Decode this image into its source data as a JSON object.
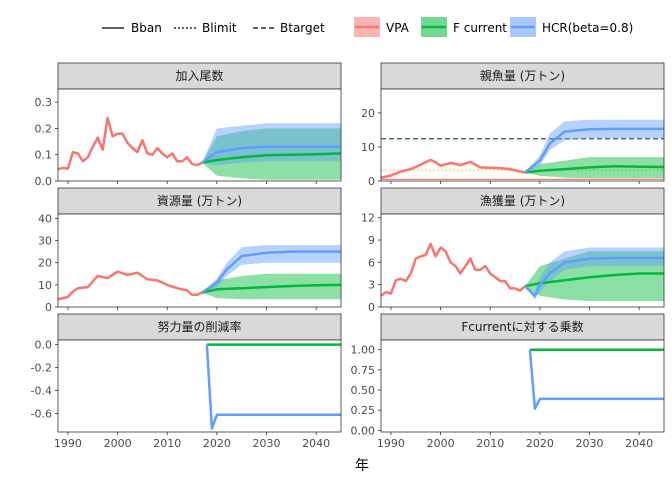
{
  "legend": {
    "linetypes": [
      {
        "label": "Bban",
        "dash": "solid"
      },
      {
        "label": "Blimit",
        "dash": "dotted"
      },
      {
        "label": "Btarget",
        "dash": "dashed"
      }
    ],
    "fills": [
      {
        "label": "VPA",
        "color": "#f8766d"
      },
      {
        "label": "F current",
        "color": "#00ba38"
      },
      {
        "label": "HCR(beta=0.8)",
        "color": "#619cff"
      }
    ]
  },
  "xlabel": "年",
  "colors": {
    "vpa": "#f8766d",
    "fcur": "#00ba38",
    "hcr": "#619cff",
    "panel_strip": "#d9d9d9",
    "btarget": "#1b5e3b",
    "blimit": "#ffd24d",
    "bban": "#f8766d"
  },
  "chart_data": [
    {
      "id": "recruit",
      "type": "line",
      "title": "加入尾数",
      "xlim": [
        1988,
        2045
      ],
      "ylim": [
        0,
        0.35
      ],
      "xticks": [
        1990,
        2000,
        2010,
        2020,
        2030,
        2040
      ],
      "yticks": [
        0.0,
        0.1,
        0.2,
        0.3
      ],
      "ytick_labels": [
        "0.0",
        "0.1",
        "0.2",
        "0.3"
      ],
      "vpa": {
        "x": [
          1988,
          1989,
          1990,
          1991,
          1992,
          1993,
          1994,
          1995,
          1996,
          1997,
          1998,
          1999,
          2000,
          2001,
          2002,
          2003,
          2004,
          2005,
          2006,
          2007,
          2008,
          2009,
          2010,
          2011,
          2012,
          2013,
          2014,
          2015,
          2016,
          2017
        ],
        "y": [
          0.045,
          0.05,
          0.047,
          0.11,
          0.105,
          0.075,
          0.09,
          0.13,
          0.165,
          0.12,
          0.24,
          0.17,
          0.18,
          0.18,
          0.145,
          0.125,
          0.11,
          0.155,
          0.105,
          0.1,
          0.125,
          0.105,
          0.09,
          0.105,
          0.075,
          0.075,
          0.09,
          0.065,
          0.06,
          0.07
        ]
      },
      "fcur": {
        "x": [
          2017,
          2020,
          2025,
          2030,
          2035,
          2040,
          2045
        ],
        "median": [
          0.07,
          0.08,
          0.09,
          0.098,
          0.1,
          0.102,
          0.105
        ],
        "lo": [
          0.07,
          0.02,
          0.01,
          0.005,
          0.005,
          0.005,
          0.005
        ],
        "hi": [
          0.07,
          0.17,
          0.19,
          0.2,
          0.2,
          0.2,
          0.2
        ]
      },
      "hcr": {
        "x": [
          2017,
          2020,
          2025,
          2030,
          2035,
          2040,
          2045
        ],
        "median": [
          0.07,
          0.11,
          0.125,
          0.13,
          0.13,
          0.13,
          0.13
        ],
        "lo": [
          0.07,
          0.06,
          0.07,
          0.075,
          0.075,
          0.075,
          0.075
        ],
        "hi": [
          0.07,
          0.2,
          0.21,
          0.22,
          0.22,
          0.22,
          0.22
        ]
      }
    },
    {
      "id": "ssb",
      "type": "line",
      "title": "親魚量 (万トン)",
      "xlim": [
        1988,
        2045
      ],
      "ylim": [
        0,
        27
      ],
      "xticks": [
        1990,
        2000,
        2010,
        2020,
        2030,
        2040
      ],
      "yticks": [
        0,
        10,
        20
      ],
      "ytick_labels": [
        "0",
        "10",
        "20"
      ],
      "refs": [
        {
          "name": "Btarget",
          "y": 12.4
        },
        {
          "name": "Blimit",
          "y": 3.2
        },
        {
          "name": "Bban",
          "y": 0.5
        }
      ],
      "vpa": {
        "x": [
          1988,
          1990,
          1992,
          1994,
          1996,
          1998,
          1999,
          2000,
          2002,
          2004,
          2006,
          2008,
          2010,
          2012,
          2014,
          2016,
          2017
        ],
        "y": [
          1.0,
          1.6,
          2.8,
          3.5,
          4.8,
          6.2,
          5.5,
          4.5,
          5.3,
          4.7,
          5.6,
          4.0,
          3.9,
          3.8,
          3.5,
          2.8,
          2.5
        ]
      },
      "fcur": {
        "x": [
          2017,
          2020,
          2025,
          2030,
          2035,
          2040,
          2045
        ],
        "median": [
          2.5,
          3.0,
          3.5,
          4.0,
          4.3,
          4.2,
          4.1
        ],
        "lo": [
          2.5,
          1.5,
          1.0,
          0.8,
          0.8,
          0.8,
          0.8
        ],
        "hi": [
          2.5,
          5.0,
          6.0,
          7.0,
          7.0,
          7.0,
          7.0
        ]
      },
      "hcr": {
        "x": [
          2017,
          2020,
          2022,
          2025,
          2030,
          2035,
          2040,
          2045
        ],
        "median": [
          2.5,
          6.0,
          11.0,
          14.5,
          15.2,
          15.3,
          15.3,
          15.3
        ],
        "lo": [
          2.5,
          4.5,
          9.0,
          12.0,
          12.5,
          12.5,
          12.5,
          12.5
        ],
        "hi": [
          2.5,
          7.5,
          14.0,
          17.5,
          18.0,
          18.0,
          18.0,
          18.0
        ]
      }
    },
    {
      "id": "biomass",
      "type": "line",
      "title": "資源量 (万トン)",
      "xlim": [
        1988,
        2045
      ],
      "ylim": [
        0,
        42
      ],
      "xticks": [
        1990,
        2000,
        2010,
        2020,
        2030,
        2040
      ],
      "yticks": [
        0,
        10,
        20,
        30,
        40
      ],
      "ytick_labels": [
        "0",
        "10",
        "20",
        "30",
        "40"
      ],
      "vpa": {
        "x": [
          1988,
          1990,
          1991,
          1992,
          1994,
          1996,
          1998,
          2000,
          2002,
          2004,
          2006,
          2008,
          2010,
          2012,
          2014,
          2015,
          2016,
          2017
        ],
        "y": [
          3.5,
          4.5,
          7.0,
          8.5,
          9.0,
          14.0,
          13.0,
          16.0,
          14.5,
          15.5,
          12.5,
          12.0,
          10.0,
          8.5,
          7.5,
          5.5,
          5.5,
          6.5
        ]
      },
      "fcur": {
        "x": [
          2017,
          2020,
          2025,
          2030,
          2035,
          2040,
          2045
        ],
        "median": [
          6.5,
          8.0,
          8.5,
          9.0,
          9.5,
          9.8,
          10.0
        ],
        "lo": [
          6.5,
          4.0,
          3.5,
          3.5,
          3.5,
          3.5,
          3.5
        ],
        "hi": [
          6.5,
          12.0,
          14.0,
          15.0,
          15.0,
          15.0,
          15.0
        ]
      },
      "hcr": {
        "x": [
          2017,
          2020,
          2022,
          2025,
          2030,
          2035,
          2040,
          2045
        ],
        "median": [
          6.5,
          11.0,
          17.0,
          23.0,
          24.5,
          25.0,
          25.0,
          25.0
        ],
        "lo": [
          6.5,
          9.0,
          14.0,
          19.0,
          20.0,
          20.0,
          20.0,
          20.0
        ],
        "hi": [
          6.5,
          13.0,
          20.0,
          27.0,
          28.0,
          28.0,
          28.0,
          28.0
        ]
      }
    },
    {
      "id": "catch",
      "type": "line",
      "title": "漁獲量 (万トン)",
      "xlim": [
        1988,
        2045
      ],
      "ylim": [
        0,
        12.5
      ],
      "xticks": [
        1990,
        2000,
        2010,
        2020,
        2030,
        2040
      ],
      "yticks": [
        0,
        3,
        6,
        9,
        12
      ],
      "ytick_labels": [
        "0",
        "3",
        "6",
        "9",
        "12"
      ],
      "vpa": {
        "x": [
          1988,
          1989,
          1990,
          1991,
          1992,
          1993,
          1994,
          1995,
          1996,
          1997,
          1998,
          1999,
          2000,
          2001,
          2002,
          2003,
          2004,
          2005,
          2006,
          2007,
          2008,
          2009,
          2010,
          2011,
          2012,
          2013,
          2014,
          2015,
          2016,
          2017
        ],
        "y": [
          1.5,
          2.0,
          1.8,
          3.6,
          3.8,
          3.5,
          4.5,
          6.5,
          6.8,
          7.0,
          8.5,
          6.8,
          8.0,
          7.5,
          6.0,
          5.5,
          4.5,
          5.5,
          6.5,
          5.0,
          5.0,
          5.5,
          4.5,
          4.0,
          3.5,
          3.5,
          2.5,
          2.5,
          2.2,
          2.8
        ]
      },
      "fcur": {
        "x": [
          2017,
          2020,
          2025,
          2030,
          2035,
          2040,
          2045
        ],
        "median": [
          2.8,
          3.2,
          3.6,
          4.0,
          4.3,
          4.5,
          4.5
        ],
        "lo": [
          2.8,
          1.5,
          1.0,
          0.8,
          0.8,
          0.8,
          0.8
        ],
        "hi": [
          2.8,
          5.5,
          6.5,
          7.5,
          7.5,
          7.5,
          7.5
        ]
      },
      "hcr": {
        "x": [
          2017,
          2019,
          2020,
          2022,
          2025,
          2030,
          2035,
          2040,
          2045
        ],
        "median": [
          2.8,
          1.5,
          3.0,
          4.5,
          6.0,
          6.5,
          6.6,
          6.6,
          6.6
        ],
        "lo": [
          2.8,
          1.0,
          2.0,
          3.5,
          5.0,
          5.5,
          5.5,
          5.5,
          5.5
        ],
        "hi": [
          2.8,
          2.0,
          4.0,
          6.0,
          7.5,
          8.0,
          8.0,
          8.0,
          8.0
        ]
      }
    },
    {
      "id": "effort",
      "type": "line",
      "title": "努力量の削減率",
      "xlim": [
        1988,
        2045
      ],
      "ylim": [
        -0.76,
        0.04
      ],
      "xticks": [
        1990,
        2000,
        2010,
        2020,
        2030,
        2040
      ],
      "xtick_labels": [
        "1990",
        "2000",
        "2010",
        "2020",
        "2030",
        "2040"
      ],
      "yticks": [
        0.0,
        -0.2,
        -0.4,
        -0.6
      ],
      "ytick_labels": [
        "0.0",
        "-0.2",
        "-0.4",
        "-0.6"
      ],
      "fcur": {
        "x": [
          2018,
          2045
        ],
        "median": [
          0,
          0
        ]
      },
      "hcr": {
        "x": [
          2018,
          2019,
          2020,
          2045
        ],
        "median": [
          0,
          -0.73,
          -0.61,
          -0.61
        ]
      }
    },
    {
      "id": "multiplier",
      "type": "line",
      "title": "Fcurrentに対する乗数",
      "xlim": [
        1988,
        2045
      ],
      "ylim": [
        -0.02,
        1.12
      ],
      "xticks": [
        1990,
        2000,
        2010,
        2020,
        2030,
        2040
      ],
      "xtick_labels": [
        "1990",
        "2000",
        "2010",
        "2020",
        "2030",
        "2040"
      ],
      "yticks": [
        0.0,
        0.25,
        0.5,
        0.75,
        1.0
      ],
      "ytick_labels": [
        "0.00",
        "0.25",
        "0.50",
        "0.75",
        "1.00"
      ],
      "fcur": {
        "x": [
          2018,
          2045
        ],
        "median": [
          1,
          1
        ]
      },
      "hcr": {
        "x": [
          2018,
          2019,
          2020,
          2045
        ],
        "median": [
          1,
          0.27,
          0.39,
          0.39
        ]
      }
    }
  ]
}
